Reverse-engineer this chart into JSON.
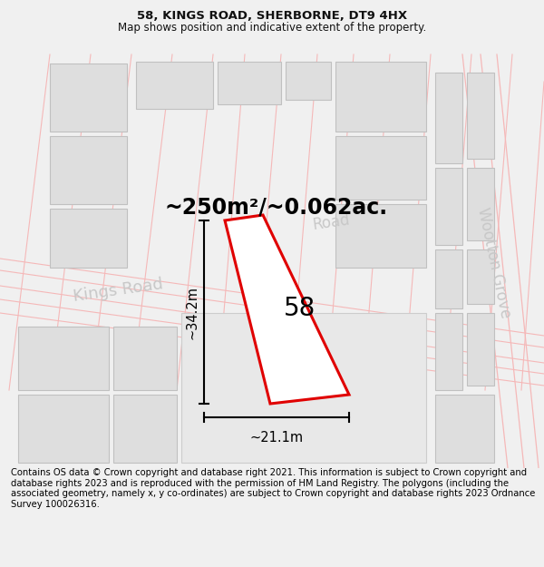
{
  "title": "58, KINGS ROAD, SHERBORNE, DT9 4HX",
  "subtitle": "Map shows position and indicative extent of the property.",
  "area_text": "~250m²/~0.062ac.",
  "label_58": "58",
  "dim_height": "~34.2m",
  "dim_width": "~21.1m",
  "footer": "Contains OS data © Crown copyright and database right 2021. This information is subject to Crown copyright and database rights 2023 and is reproduced with the permission of HM Land Registry. The polygons (including the associated geometry, namely x, y co-ordinates) are subject to Crown copyright and database rights 2023 Ordnance Survey 100026316.",
  "bg_color": "#f0f0f0",
  "map_bg": "#ffffff",
  "building_fill": "#dedede",
  "building_edge": "#c0c0c0",
  "road_line_color": "#f5b8b8",
  "road_text_color": "#c8c8c8",
  "plot_edge_color": "#e00000",
  "plot_fill": "#ffffff",
  "title_fontsize": 9.5,
  "subtitle_fontsize": 8.5,
  "footer_fontsize": 7.2,
  "area_fontsize": 17,
  "label_fontsize": 20,
  "dim_fontsize": 10.5,
  "road_fontsize": 13,
  "kings_road_text": "Kings Road",
  "wootton_grove_text": "Wootton Grove",
  "road_text": "Road"
}
